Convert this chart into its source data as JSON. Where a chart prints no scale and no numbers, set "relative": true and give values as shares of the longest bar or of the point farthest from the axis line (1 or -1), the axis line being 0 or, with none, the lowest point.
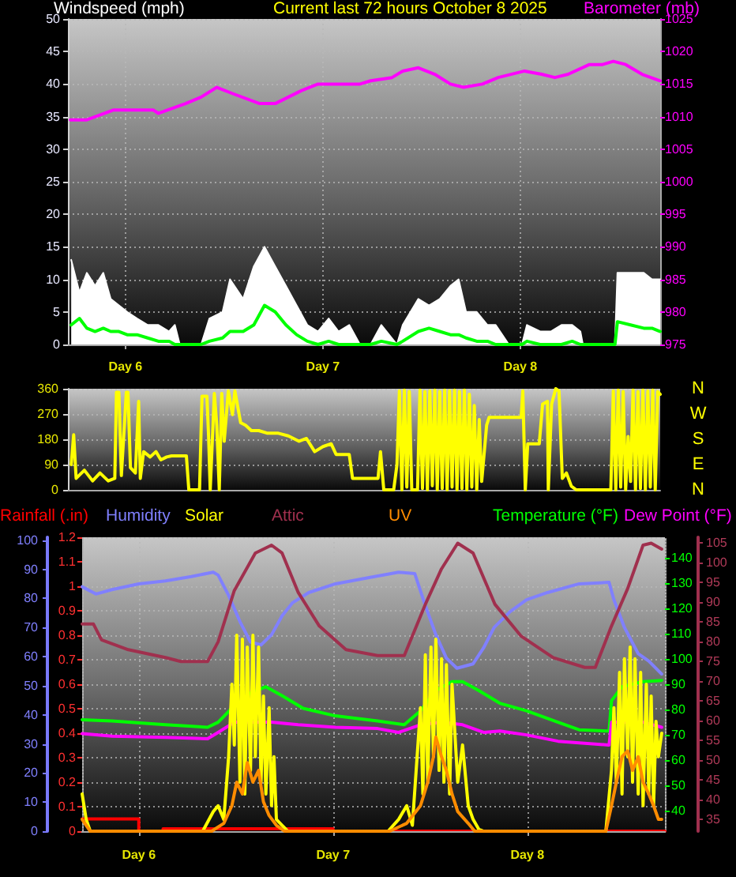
{
  "chart_data": [
    {
      "type": "line",
      "title": "Current last 72 hours October 8 2025",
      "ylabel": "Windspeed (mph)",
      "y2label": "Barometer (mb)",
      "xlim": [
        "2025-10-05T17:00",
        "2025-10-08T17:00"
      ],
      "xticks": [
        {
          "value": "2025-10-06",
          "label": "Day 6"
        },
        {
          "value": "2025-10-07",
          "label": "Day 7"
        },
        {
          "value": "2025-10-08",
          "label": "Day 8"
        }
      ],
      "ylim": [
        0,
        50
      ],
      "yticks": [
        0,
        5,
        10,
        15,
        20,
        25,
        30,
        35,
        40,
        45,
        50
      ],
      "y2lim": [
        975,
        1025
      ],
      "y2ticks": [
        975,
        980,
        985,
        990,
        995,
        1000,
        1005,
        1010,
        1015,
        1020,
        1025
      ],
      "grid": true,
      "marker": "none",
      "x": [
        "2025-10-05T17:24",
        "2025-10-05T18:24",
        "2025-10-05T19:18",
        "2025-10-05T20:18",
        "2025-10-05T21:18",
        "2025-10-05T22:12",
        "2025-10-05T23:12",
        "2025-10-06T00:12",
        "2025-10-06T01:24",
        "2025-10-06T02:42",
        "2025-10-06T04:00",
        "2025-10-06T05:18",
        "2025-10-06T06:00",
        "2025-10-06T06:36",
        "2025-10-06T09:12",
        "2025-10-06T10:12",
        "2025-10-06T11:48",
        "2025-10-06T12:42",
        "2025-10-06T14:18",
        "2025-10-06T15:36",
        "2025-10-06T16:54",
        "2025-10-06T18:12",
        "2025-10-06T19:30",
        "2025-10-06T20:48",
        "2025-10-06T22:06",
        "2025-10-06T23:24",
        "2025-10-07T00:42",
        "2025-10-07T01:54",
        "2025-10-07T03:12",
        "2025-10-07T04:30",
        "2025-10-07T05:48",
        "2025-10-07T07:06",
        "2025-10-07T09:00",
        "2025-10-07T09:42",
        "2025-10-07T11:36",
        "2025-10-07T12:54",
        "2025-10-07T14:12",
        "2025-10-07T15:30",
        "2025-10-07T16:30",
        "2025-10-07T17:24",
        "2025-10-07T18:42",
        "2025-10-07T20:00",
        "2025-10-07T21:00",
        "2025-10-07T22:36",
        "2025-10-08T00:12",
        "2025-10-08T00:48",
        "2025-10-08T02:24",
        "2025-10-08T03:42",
        "2025-10-08T05:00",
        "2025-10-08T06:18",
        "2025-10-08T07:18",
        "2025-10-08T07:36",
        "2025-10-08T11:30",
        "2025-10-08T11:48",
        "2025-10-08T13:24",
        "2025-10-08T15:00",
        "2025-10-08T16:00",
        "2025-10-08T17:00"
      ],
      "series": [
        {
          "type": "area",
          "color": "#ffffff",
          "values": [
            13,
            8,
            11,
            9,
            11,
            7,
            6,
            5,
            4,
            3,
            3,
            2,
            3,
            0,
            0,
            4,
            5,
            10,
            7,
            12,
            15,
            12,
            9,
            6,
            3,
            2,
            4,
            2,
            3,
            0,
            0,
            3,
            0,
            3,
            7,
            6,
            7,
            9,
            10,
            5,
            5,
            3,
            3,
            0,
            0,
            3,
            2,
            2,
            3,
            3,
            2,
            0,
            0,
            11,
            11,
            11,
            10,
            10
          ]
        },
        {
          "color": "#00ff00",
          "values": [
            3,
            4,
            2.5,
            2,
            2.5,
            2,
            2,
            1.5,
            1.5,
            1,
            0.5,
            0.5,
            0,
            0,
            0,
            0.5,
            1,
            2,
            2,
            3,
            6,
            5,
            3,
            1.5,
            0.5,
            0,
            0.5,
            0,
            0,
            0,
            0,
            0.5,
            0,
            0.5,
            2,
            2.5,
            2,
            1.5,
            1.5,
            1,
            0.5,
            0.5,
            0,
            0,
            0,
            0.5,
            0,
            0,
            0,
            0.5,
            0,
            0,
            0,
            3.5,
            3,
            2.5,
            2.5,
            2
          ]
        },
        {
          "color": "#ff00ff",
          "axis": "y2",
          "x": [
            "2025-10-05T17:18",
            "2025-10-05T19:18",
            "2025-10-05T22:30",
            "2025-10-06T00:12",
            "2025-10-06T03:24",
            "2025-10-06T04:00",
            "2025-10-06T07:18",
            "2025-10-06T09:12",
            "2025-10-06T11:06",
            "2025-10-06T13:06",
            "2025-10-06T16:18",
            "2025-10-06T18:12",
            "2025-10-06T21:24",
            "2025-10-06T23:24",
            "2025-10-07T01:54",
            "2025-10-07T04:30",
            "2025-10-07T05:48",
            "2025-10-07T08:24",
            "2025-10-07T09:42",
            "2025-10-07T11:36",
            "2025-10-07T13:36",
            "2025-10-07T15:30",
            "2025-10-07T17:06",
            "2025-10-07T19:24",
            "2025-10-07T21:18",
            "2025-10-08T00:30",
            "2025-10-08T02:36",
            "2025-10-08T04:12",
            "2025-10-08T05:48",
            "2025-10-08T08:24",
            "2025-10-08T10:00",
            "2025-10-08T11:18",
            "2025-10-08T12:48",
            "2025-10-08T14:48",
            "2025-10-08T17:00"
          ],
          "values": [
            1009.5,
            1009.5,
            1011,
            1011,
            1011,
            1010.5,
            1012,
            1013,
            1014.5,
            1013.5,
            1012,
            1012,
            1014,
            1015,
            1015,
            1015,
            1015.5,
            1016,
            1017,
            1017.5,
            1016.5,
            1015,
            1014.5,
            1015,
            1016,
            1017,
            1016.5,
            1016,
            1016.5,
            1018,
            1018,
            1018.5,
            1018,
            1016.5,
            1015.5
          ]
        }
      ]
    },
    {
      "type": "line",
      "annotations": [
        "N",
        "W",
        "S",
        "E",
        "N"
      ],
      "xlim": [
        "2025-10-05T17:00",
        "2025-10-08T17:00"
      ],
      "ylim": [
        0,
        360
      ],
      "yticks": [
        0,
        90,
        180,
        270,
        360
      ],
      "tick_labels": "y",
      "grid": "y",
      "marker": "none",
      "series": [
        {
          "color": "#ffff00",
          "x": [
            "2025-10-05T17:24",
            "2025-10-05T17:42",
            "2025-10-05T18:00",
            "2025-10-05T19:00",
            "2025-10-05T20:00",
            "2025-10-05T20:54",
            "2025-10-05T21:54",
            "2025-10-05T22:42",
            "2025-10-05T22:54",
            "2025-10-05T23:12",
            "2025-10-05T23:30",
            "2025-10-06T00:06",
            "2025-10-06T00:18",
            "2025-10-06T00:36",
            "2025-10-06T01:12",
            "2025-10-06T01:36",
            "2025-10-06T01:48",
            "2025-10-06T02:12",
            "2025-10-06T03:00",
            "2025-10-06T03:42",
            "2025-10-06T04:18",
            "2025-10-06T05:00",
            "2025-10-06T05:36",
            "2025-10-06T07:24",
            "2025-10-06T07:42",
            "2025-10-06T09:00",
            "2025-10-06T09:18",
            "2025-10-06T09:54",
            "2025-10-06T10:06",
            "2025-10-06T10:18",
            "2025-10-06T10:48",
            "2025-10-06T11:06",
            "2025-10-06T11:24",
            "2025-10-06T11:42",
            "2025-10-06T12:00",
            "2025-10-06T12:30",
            "2025-10-06T13:00",
            "2025-10-06T13:18",
            "2025-10-06T14:00",
            "2025-10-06T14:36",
            "2025-10-06T15:18",
            "2025-10-06T16:12",
            "2025-10-06T17:12",
            "2025-10-06T18:30",
            "2025-10-06T19:48",
            "2025-10-06T21:06",
            "2025-10-06T22:00",
            "2025-10-06T23:00",
            "2025-10-07T00:00",
            "2025-10-07T01:00",
            "2025-10-07T01:36",
            "2025-10-07T03:12",
            "2025-10-07T03:36",
            "2025-10-07T06:42",
            "2025-10-07T07:00",
            "2025-10-07T07:24",
            "2025-10-07T08:36",
            "2025-10-07T09:00",
            "2025-10-07T09:18",
            "2025-10-07T09:36",
            "2025-10-07T09:54",
            "2025-10-07T10:12",
            "2025-10-07T10:30",
            "2025-10-07T10:48",
            "2025-10-07T11:30",
            "2025-10-07T11:48",
            "2025-10-07T12:06",
            "2025-10-07T12:24",
            "2025-10-07T12:42",
            "2025-10-07T13:00",
            "2025-10-07T13:18",
            "2025-10-07T13:36",
            "2025-10-07T13:54",
            "2025-10-07T14:12",
            "2025-10-07T14:30",
            "2025-10-07T14:48",
            "2025-10-07T15:06",
            "2025-10-07T15:24",
            "2025-10-07T15:42",
            "2025-10-07T16:00",
            "2025-10-07T16:18",
            "2025-10-07T16:36",
            "2025-10-07T16:54",
            "2025-10-07T17:12",
            "2025-10-07T17:30",
            "2025-10-07T17:48",
            "2025-10-07T18:06",
            "2025-10-07T18:24",
            "2025-10-07T18:42",
            "2025-10-07T19:00",
            "2025-10-07T19:18",
            "2025-10-07T19:54",
            "2025-10-07T20:12",
            "2025-10-08T00:06",
            "2025-10-08T00:18",
            "2025-10-08T00:36",
            "2025-10-08T00:54",
            "2025-10-08T02:18",
            "2025-10-08T02:42",
            "2025-10-08T03:18",
            "2025-10-08T03:24",
            "2025-10-08T03:48",
            "2025-10-08T04:18",
            "2025-10-08T04:42",
            "2025-10-08T05:06",
            "2025-10-08T05:36",
            "2025-10-08T06:12",
            "2025-10-08T06:48",
            "2025-10-08T11:00",
            "2025-10-08T11:18",
            "2025-10-08T11:36",
            "2025-10-08T11:54",
            "2025-10-08T12:12",
            "2025-10-08T12:30",
            "2025-10-08T12:48",
            "2025-10-08T13:06",
            "2025-10-08T13:24",
            "2025-10-08T13:42",
            "2025-10-08T14:00",
            "2025-10-08T14:18",
            "2025-10-08T14:36",
            "2025-10-08T14:54",
            "2025-10-08T15:12",
            "2025-10-08T15:30",
            "2025-10-08T15:48",
            "2025-10-08T16:06",
            "2025-10-08T16:24",
            "2025-10-08T16:42",
            "2025-10-08T17:00"
          ],
          "values": [
            90,
            196,
            41,
            70,
            32,
            60,
            32,
            41,
            347,
            347,
            51,
            347,
            347,
            79,
            60,
            315,
            41,
            136,
            117,
            136,
            107,
            117,
            121,
            121,
            0,
            0,
            333,
            333,
            192,
            0,
            343,
            230,
            0,
            343,
            173,
            352,
            268,
            352,
            239,
            230,
            211,
            211,
            202,
            202,
            192,
            173,
            183,
            136,
            154,
            164,
            126,
            126,
            41,
            41,
            136,
            0,
            0,
            89,
            352,
            0,
            355,
            10,
            350,
            0,
            0,
            355,
            5,
            350,
            0,
            352,
            15,
            355,
            0,
            350,
            5,
            355,
            0,
            352,
            10,
            355,
            0,
            350,
            5,
            355,
            0,
            340,
            10,
            300,
            0,
            250,
            30,
            230,
            258,
            258,
            352,
            0,
            164,
            164,
            305,
            315,
            0,
            305,
            360,
            352,
            41,
            60,
            13,
            0,
            0,
            352,
            0,
            355,
            10,
            350,
            0,
            190,
            30,
            355,
            0,
            350,
            5,
            355,
            0,
            352,
            10,
            355,
            0,
            350,
            340
          ]
        }
      ]
    },
    {
      "type": "line",
      "xlim": [
        "2025-10-05T17:00",
        "2025-10-08T17:00"
      ],
      "xticks": [
        {
          "value": "2025-10-06",
          "label": "Day 6"
        },
        {
          "value": "2025-10-07",
          "label": "Day 7"
        },
        {
          "value": "2025-10-08",
          "label": "Day 8"
        }
      ],
      "ylim": [
        0,
        1.2
      ],
      "yticks": [
        0,
        0.1,
        0.2,
        0.3,
        0.4,
        0.5,
        0.6,
        0.7,
        0.8,
        0.9,
        1,
        1.1,
        1.2
      ],
      "y2lim": [
        0,
        101
      ],
      "y2ticks": [
        0,
        10,
        20,
        30,
        40,
        50,
        60,
        70,
        80,
        90,
        100
      ],
      "y3lim": [
        32,
        148
      ],
      "y3ticks": [
        40,
        50,
        60,
        70,
        80,
        90,
        100,
        110,
        120,
        130,
        140
      ],
      "grid": true,
      "legend": "top",
      "marker": "none",
      "series": [
        {
          "name": "Rainfall (.in)",
          "type": "step",
          "color": "#ff0000",
          "x": [
            "2025-10-05T17:00",
            "2025-10-06T00:00",
            "2025-10-06T03:00",
            "2025-10-07T00:00",
            "2025-10-08T17:00"
          ],
          "values": [
            0.05,
            0,
            0.01,
            0,
            0
          ]
        },
        {
          "name": "Humidity",
          "color": "#8080ff",
          "axis": "y2",
          "x": [
            "2025-10-05T17:00",
            "2025-10-05T18:42",
            "2025-10-05T20:42",
            "2025-10-06T00:00",
            "2025-10-06T03:18",
            "2025-10-06T06:30",
            "2025-10-06T09:12",
            "2025-10-06T09:48",
            "2025-10-06T11:06",
            "2025-10-06T12:30",
            "2025-10-06T13:48",
            "2025-10-06T15:06",
            "2025-10-06T16:24",
            "2025-10-06T17:42",
            "2025-10-06T19:00",
            "2025-10-06T21:00",
            "2025-10-07T00:18",
            "2025-10-07T04:12",
            "2025-10-07T08:06",
            "2025-10-07T10:06",
            "2025-10-07T11:24",
            "2025-10-07T12:42",
            "2025-10-07T14:00",
            "2025-10-07T15:18",
            "2025-10-07T17:18",
            "2025-10-07T18:36",
            "2025-10-07T19:54",
            "2025-10-07T21:54",
            "2025-10-07T23:54",
            "2025-10-08T02:30",
            "2025-10-08T06:24",
            "2025-10-08T10:06",
            "2025-10-08T10:42",
            "2025-10-08T12:00",
            "2025-10-08T13:42",
            "2025-10-08T15:00",
            "2025-10-08T16:36"
          ],
          "values": [
            84,
            81.5,
            83,
            85,
            86,
            87.5,
            89,
            88,
            81,
            72,
            65,
            64,
            67.5,
            74,
            78.5,
            82,
            85,
            87,
            89,
            88.5,
            77.5,
            67.5,
            59.5,
            56,
            57.5,
            63,
            70,
            75.5,
            79.5,
            82,
            85,
            85.5,
            79.5,
            70,
            61,
            58.5,
            54
          ]
        },
        {
          "name": "Temperature (°F)",
          "color": "#00ff00",
          "axis": "y3",
          "x": [
            "2025-10-05T17:00",
            "2025-10-05T20:42",
            "2025-10-06T03:18",
            "2025-10-06T08:30",
            "2025-10-06T09:48",
            "2025-10-06T11:48",
            "2025-10-06T13:48",
            "2025-10-06T15:42",
            "2025-10-06T17:42",
            "2025-10-06T20:18",
            "2025-10-07T00:18",
            "2025-10-07T05:30",
            "2025-10-07T08:48",
            "2025-10-07T10:48",
            "2025-10-07T12:42",
            "2025-10-07T14:42",
            "2025-10-07T16:00",
            "2025-10-07T18:00",
            "2025-10-07T20:36",
            "2025-10-07T23:54",
            "2025-10-08T03:48",
            "2025-10-08T06:24",
            "2025-10-08T10:06",
            "2025-10-08T10:24",
            "2025-10-08T11:42",
            "2025-10-08T14:18",
            "2025-10-08T16:36"
          ],
          "values": [
            76,
            75.5,
            74,
            73,
            75,
            81.5,
            86.5,
            89,
            85.5,
            80.5,
            77.5,
            75.5,
            74,
            79.5,
            87.5,
            91,
            91,
            87.5,
            82.5,
            79.5,
            75,
            72,
            71.5,
            83.5,
            89,
            91,
            91.5
          ]
        },
        {
          "name": "Dew Point (°F)",
          "color": "#ff00ff",
          "axis": "y3",
          "x": [
            "2025-10-05T17:00",
            "2025-10-05T20:42",
            "2025-10-06T03:18",
            "2025-10-06T08:30",
            "2025-10-06T09:48",
            "2025-10-06T11:48",
            "2025-10-06T16:24",
            "2025-10-06T19:42",
            "2025-10-07T00:18",
            "2025-10-07T05:30",
            "2025-10-07T08:06",
            "2025-10-07T10:48",
            "2025-10-07T13:24",
            "2025-10-07T16:00",
            "2025-10-07T18:36",
            "2025-10-07T20:36",
            "2025-10-07T23:54",
            "2025-10-08T03:48",
            "2025-10-08T10:06",
            "2025-10-08T10:24",
            "2025-10-08T14:18",
            "2025-10-08T16:36"
          ],
          "values": [
            70.5,
            69.5,
            69,
            68.5,
            71,
            75,
            75,
            74,
            73,
            72.5,
            71,
            74,
            75,
            74,
            71,
            71.5,
            70,
            67.5,
            66,
            75,
            75,
            73
          ]
        }
      ]
    },
    {
      "type": "line",
      "xlim": [
        "2025-10-05T17:00",
        "2025-10-08T17:00"
      ],
      "ylim": [
        32,
        106.5
      ],
      "yticks": [
        35,
        40,
        45,
        50,
        55,
        60,
        65,
        70,
        75,
        80,
        85,
        90,
        95,
        100,
        105
      ],
      "tick_labels": "y",
      "legend": "top",
      "marker": "none",
      "series": [
        {
          "name": "Attic",
          "color": "#a0304e",
          "x": [
            "2025-10-05T17:00",
            "2025-10-05T18:24",
            "2025-10-05T19:24",
            "2025-10-05T22:42",
            "2025-10-06T03:18",
            "2025-10-06T05:12",
            "2025-10-06T08:30",
            "2025-10-06T09:48",
            "2025-10-06T11:48",
            "2025-10-06T14:24",
            "2025-10-06T16:24",
            "2025-10-06T17:42",
            "2025-10-06T19:42",
            "2025-10-06T22:18",
            "2025-10-07T01:36",
            "2025-10-07T05:30",
            "2025-10-07T08:48",
            "2025-10-07T11:24",
            "2025-10-07T13:24",
            "2025-10-07T15:24",
            "2025-10-07T17:18",
            "2025-10-07T20:00",
            "2025-10-07T23:12",
            "2025-10-08T03:12",
            "2025-10-08T07:06",
            "2025-10-08T08:24",
            "2025-10-08T10:24",
            "2025-10-08T12:24",
            "2025-10-08T14:18",
            "2025-10-08T15:18",
            "2025-10-08T16:36"
          ],
          "values": [
            84.5,
            84.5,
            80.5,
            78,
            76,
            75,
            75,
            80,
            93,
            102.5,
            104.5,
            102.5,
            92.5,
            84,
            78,
            76.5,
            76.5,
            89.5,
            98.5,
            105,
            102.5,
            89.5,
            81.5,
            76,
            73.5,
            73.5,
            84,
            93.5,
            104.5,
            105,
            103.5
          ]
        }
      ]
    },
    {
      "type": "line",
      "relative": true,
      "xlim": [
        "2025-10-05T17:00",
        "2025-10-08T17:00"
      ],
      "tick_labels": false,
      "legend": "top",
      "marker": "none",
      "series": [
        {
          "name": "Solar",
          "color": "#ffff00",
          "x": [
            "2025-10-05T17:00",
            "2025-10-05T17:30",
            "2025-10-05T18:00",
            "2025-10-06T07:54",
            "2025-10-06T09:12",
            "2025-10-06T09:48",
            "2025-10-06T10:30",
            "2025-10-06T11:06",
            "2025-10-06T11:30",
            "2025-10-06T11:48",
            "2025-10-06T12:06",
            "2025-10-06T12:30",
            "2025-10-06T12:48",
            "2025-10-06T13:06",
            "2025-10-06T13:24",
            "2025-10-06T13:48",
            "2025-10-06T14:06",
            "2025-10-06T14:24",
            "2025-10-06T14:48",
            "2025-10-06T15:06",
            "2025-10-06T15:24",
            "2025-10-06T15:42",
            "2025-10-06T16:06",
            "2025-10-06T16:24",
            "2025-10-06T16:42",
            "2025-10-06T17:00",
            "2025-10-06T17:42",
            "2025-10-06T18:24",
            "2025-10-07T06:48",
            "2025-10-07T08:06",
            "2025-10-07T09:06",
            "2025-10-07T09:48",
            "2025-10-07T10:48",
            "2025-10-07T11:06",
            "2025-10-07T11:24",
            "2025-10-07T11:42",
            "2025-10-07T12:06",
            "2025-10-07T12:24",
            "2025-10-07T12:42",
            "2025-10-07T13:06",
            "2025-10-07T13:24",
            "2025-10-07T13:42",
            "2025-10-07T14:00",
            "2025-10-07T14:24",
            "2025-10-07T14:42",
            "2025-10-07T15:24",
            "2025-10-07T16:00",
            "2025-10-07T16:42",
            "2025-10-07T17:18",
            "2025-10-07T18:00",
            "2025-10-07T18:36",
            "2025-10-08T09:42",
            "2025-10-08T10:24",
            "2025-10-08T10:42",
            "2025-10-08T11:00",
            "2025-10-08T11:24",
            "2025-10-08T11:42",
            "2025-10-08T12:00",
            "2025-10-08T12:24",
            "2025-10-08T12:42",
            "2025-10-08T13:00",
            "2025-10-08T13:18",
            "2025-10-08T13:42",
            "2025-10-08T14:00",
            "2025-10-08T14:18",
            "2025-10-08T14:42",
            "2025-10-08T15:00",
            "2025-10-08T15:18",
            "2025-10-08T15:36",
            "2025-10-08T15:54",
            "2025-10-08T16:12",
            "2025-10-08T16:36"
          ],
          "values": [
            0.19,
            0.06,
            0,
            0,
            0.1,
            0.13,
            0.06,
            0.38,
            0.75,
            0.44,
            1,
            0.25,
            0.98,
            0.19,
            0.94,
            0.31,
            1,
            0.38,
            0.94,
            0.25,
            0.69,
            0.19,
            0.63,
            0.13,
            0.38,
            0.06,
            0.03,
            0,
            0,
            0.06,
            0.13,
            0.03,
            0.63,
            0.19,
            0.9,
            0.25,
            0.94,
            0.38,
            0.98,
            0.31,
            0.88,
            0.25,
            0.85,
            0.19,
            0.75,
            0.25,
            0.44,
            0.13,
            0.06,
            0.01,
            0,
            0,
            0.31,
            0.63,
            0.25,
            0.81,
            0.19,
            0.88,
            0.38,
            0.94,
            0.25,
            0.88,
            0.19,
            0.81,
            0.13,
            0.75,
            0.19,
            0.69,
            0.13,
            0.56,
            0.38,
            0.5
          ]
        },
        {
          "name": "UV",
          "color": "#ff8c00",
          "x": [
            "2025-10-05T17:00",
            "2025-10-05T18:00",
            "2025-10-06T09:00",
            "2025-10-06T10:30",
            "2025-10-06T11:30",
            "2025-10-06T12:06",
            "2025-10-06T12:48",
            "2025-10-06T13:24",
            "2025-10-06T14:06",
            "2025-10-06T14:48",
            "2025-10-06T15:24",
            "2025-10-06T16:06",
            "2025-10-06T17:00",
            "2025-10-06T18:00",
            "2025-10-07T07:00",
            "2025-10-07T09:06",
            "2025-10-07T10:48",
            "2025-10-07T11:42",
            "2025-10-07T12:24",
            "2025-10-07T12:42",
            "2025-10-07T13:24",
            "2025-10-07T14:00",
            "2025-10-07T14:42",
            "2025-10-07T15:24",
            "2025-10-07T16:42",
            "2025-10-07T17:30",
            "2025-10-08T09:42",
            "2025-10-08T10:24",
            "2025-10-08T11:00",
            "2025-10-08T11:42",
            "2025-10-08T12:24",
            "2025-10-08T13:00",
            "2025-10-08T13:42",
            "2025-10-08T14:18",
            "2025-10-08T15:00",
            "2025-10-08T15:36",
            "2025-10-08T16:12",
            "2025-10-08T16:36"
          ],
          "values": [
            0.06,
            0,
            0,
            0.04,
            0.13,
            0.25,
            0.19,
            0.35,
            0.25,
            0.31,
            0.15,
            0.08,
            0.03,
            0,
            0,
            0.04,
            0.13,
            0.25,
            0.38,
            0.48,
            0.38,
            0.31,
            0.19,
            0.1,
            0.04,
            0,
            0,
            0.13,
            0.25,
            0.38,
            0.41,
            0.31,
            0.38,
            0.25,
            0.19,
            0.13,
            0.06,
            0.06
          ]
        }
      ]
    }
  ]
}
